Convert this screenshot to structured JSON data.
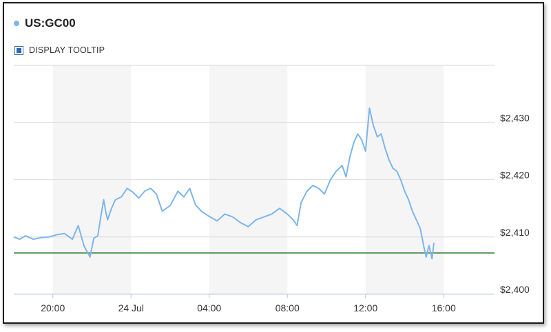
{
  "legend": {
    "symbol": "US:GC00",
    "color": "#7cb5ec"
  },
  "tooltip_toggle": {
    "label": "DISPLAY TOOLTIP",
    "checked": true
  },
  "chart_data": {
    "type": "line",
    "series": [
      {
        "name": "US:GC00",
        "color": "#7cb5ec",
        "x_hours": [
          18.0,
          18.3,
          18.6,
          19.0,
          19.4,
          19.8,
          20.2,
          20.6,
          21.0,
          21.3,
          21.6,
          21.9,
          22.1,
          22.3,
          22.45,
          22.6,
          22.7,
          22.8,
          23.0,
          23.2,
          23.5,
          23.8,
          24.1,
          24.4,
          24.7,
          25.0,
          25.3,
          25.6,
          26.0,
          26.4,
          26.7,
          27.0,
          27.3,
          27.6,
          28.0,
          28.4,
          28.8,
          29.2,
          29.6,
          30.0,
          30.4,
          30.8,
          31.2,
          31.6,
          32.0,
          32.3,
          32.5,
          32.7,
          33.0,
          33.3,
          33.6,
          33.9,
          34.2,
          34.5,
          34.8,
          35.0,
          35.2,
          35.4,
          35.6,
          35.8,
          36.0,
          36.2,
          36.4,
          36.6,
          36.8,
          37.0,
          37.2,
          37.4,
          37.6,
          37.8,
          38.0,
          38.2,
          38.4,
          38.6,
          38.8
        ],
        "values": [
          2410.0,
          2409.6,
          2410.2,
          2409.6,
          2409.9,
          2410.0,
          2410.4,
          2410.6,
          2409.6,
          2412.0,
          2408.4,
          2406.5,
          2409.8,
          2410.2,
          2413.5,
          2416.5,
          2414.5,
          2413.0,
          2415.0,
          2416.5,
          2417.0,
          2418.5,
          2417.8,
          2416.8,
          2418.0,
          2418.5,
          2417.5,
          2414.5,
          2415.5,
          2418.0,
          2417.0,
          2418.5,
          2415.6,
          2414.5,
          2413.6,
          2412.8,
          2414.0,
          2413.5,
          2412.5,
          2411.8,
          2413.0,
          2413.5,
          2414.0,
          2415.0,
          2414.0,
          2413.0,
          2412.0,
          2416.0,
          2418.0,
          2419.0,
          2418.5,
          2417.5,
          2420.0,
          2421.5,
          2422.5,
          2420.5,
          2424.0,
          2426.5,
          2428.0,
          2427.0,
          2425.0,
          2432.5,
          2429.5,
          2427.5,
          2428.0,
          2425.5,
          2423.5,
          2422.0,
          2421.5,
          2420.0,
          2418.0,
          2416.5,
          2414.5,
          2413.0,
          2411.5
        ]
      },
      {
        "name": "",
        "color": "#7cb5ec",
        "x_hours": [
          38.8,
          39.0,
          39.1,
          39.25,
          39.4,
          39.5
        ],
        "values": [
          2411.5,
          2408.0,
          2406.5,
          2408.5,
          2406.2,
          2409.0
        ]
      }
    ],
    "reference_line": {
      "value": 2407.2,
      "color": "#2e7d32"
    },
    "x_range_hours": [
      18.0,
      42.6
    ],
    "x_ticks": [
      {
        "hour": 20,
        "label": "20:00"
      },
      {
        "hour": 24,
        "label": "24 Jul"
      },
      {
        "hour": 28,
        "label": "04:00"
      },
      {
        "hour": 32,
        "label": "08:00"
      },
      {
        "hour": 36,
        "label": "12:00"
      },
      {
        "hour": 40,
        "label": "16:00"
      }
    ],
    "y_range": [
      2400,
      2440
    ],
    "y_ticks": [
      {
        "value": 2400,
        "label": "$2,400"
      },
      {
        "value": 2410,
        "label": "$2,410"
      },
      {
        "value": 2420,
        "label": "$2,420"
      },
      {
        "value": 2430,
        "label": "$2,430"
      }
    ],
    "alternate_bands": [
      [
        20,
        24
      ],
      [
        28,
        32
      ],
      [
        36,
        40
      ]
    ],
    "grid": true,
    "y_axis_side": "right"
  }
}
